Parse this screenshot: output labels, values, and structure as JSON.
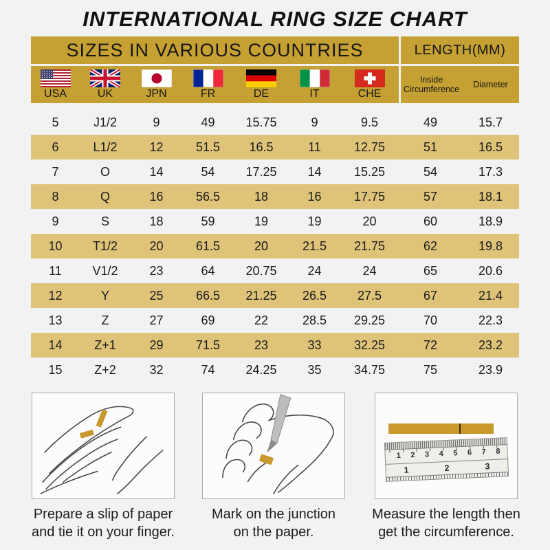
{
  "title": "INTERNATIONAL RING SIZE CHART",
  "colors": {
    "header_gold": "#C5A033",
    "row_gold": "#DEC378",
    "strip_gold": "#C9992E",
    "page_background": "#f2f2f2"
  },
  "table": {
    "left_group_header": "SIZES IN VARIOUS COUNTRIES",
    "right_group_header": "LENGTH(MM)",
    "countries": [
      {
        "code": "USA",
        "flag_icon": "usa-flag-icon"
      },
      {
        "code": "UK",
        "flag_icon": "uk-flag-icon"
      },
      {
        "code": "JPN",
        "flag_icon": "japan-flag-icon"
      },
      {
        "code": "FR",
        "flag_icon": "france-flag-icon"
      },
      {
        "code": "DE",
        "flag_icon": "germany-flag-icon"
      },
      {
        "code": "IT",
        "flag_icon": "italy-flag-icon"
      },
      {
        "code": "CHE",
        "flag_icon": "switzerland-flag-icon"
      }
    ],
    "length_headers": {
      "inside_circumference": "Inside Circumference",
      "diameter": "Diameter"
    },
    "rows": [
      [
        "5",
        "J1/2",
        "9",
        "49",
        "15.75",
        "9",
        "9.5",
        "49",
        "15.7"
      ],
      [
        "6",
        "L1/2",
        "12",
        "51.5",
        "16.5",
        "11",
        "12.75",
        "51",
        "16.5"
      ],
      [
        "7",
        "O",
        "14",
        "54",
        "17.25",
        "14",
        "15.25",
        "54",
        "17.3"
      ],
      [
        "8",
        "Q",
        "16",
        "56.5",
        "18",
        "16",
        "17.75",
        "57",
        "18.1"
      ],
      [
        "9",
        "S",
        "18",
        "59",
        "19",
        "19",
        "20",
        "60",
        "18.9"
      ],
      [
        "10",
        "T1/2",
        "20",
        "61.5",
        "20",
        "21.5",
        "21.75",
        "62",
        "19.8"
      ],
      [
        "11",
        "V1/2",
        "23",
        "64",
        "20.75",
        "24",
        "24",
        "65",
        "20.6"
      ],
      [
        "12",
        "Y",
        "25",
        "66.5",
        "21.25",
        "26.5",
        "27.5",
        "67",
        "21.4"
      ],
      [
        "13",
        "Z",
        "27",
        "69",
        "22",
        "28.5",
        "29.25",
        "70",
        "22.3"
      ],
      [
        "14",
        "Z+1",
        "29",
        "71.5",
        "23",
        "33",
        "32.25",
        "72",
        "23.2"
      ],
      [
        "15",
        "Z+2",
        "32",
        "74",
        "24.25",
        "35",
        "34.75",
        "75",
        "23.9"
      ]
    ]
  },
  "steps": [
    {
      "caption_line1": "Prepare a slip of paper",
      "caption_line2": "and tie it on your finger."
    },
    {
      "caption_line1": "Mark on the junction",
      "caption_line2": "on the paper."
    },
    {
      "caption_line1": "Measure the length then",
      "caption_line2": "get the circumference.",
      "ruler": {
        "cm_numbers": [
          "1",
          "2",
          "3",
          "4",
          "5",
          "6",
          "7",
          "8"
        ],
        "inch_numbers": [
          "1",
          "2",
          "3"
        ]
      }
    }
  ]
}
